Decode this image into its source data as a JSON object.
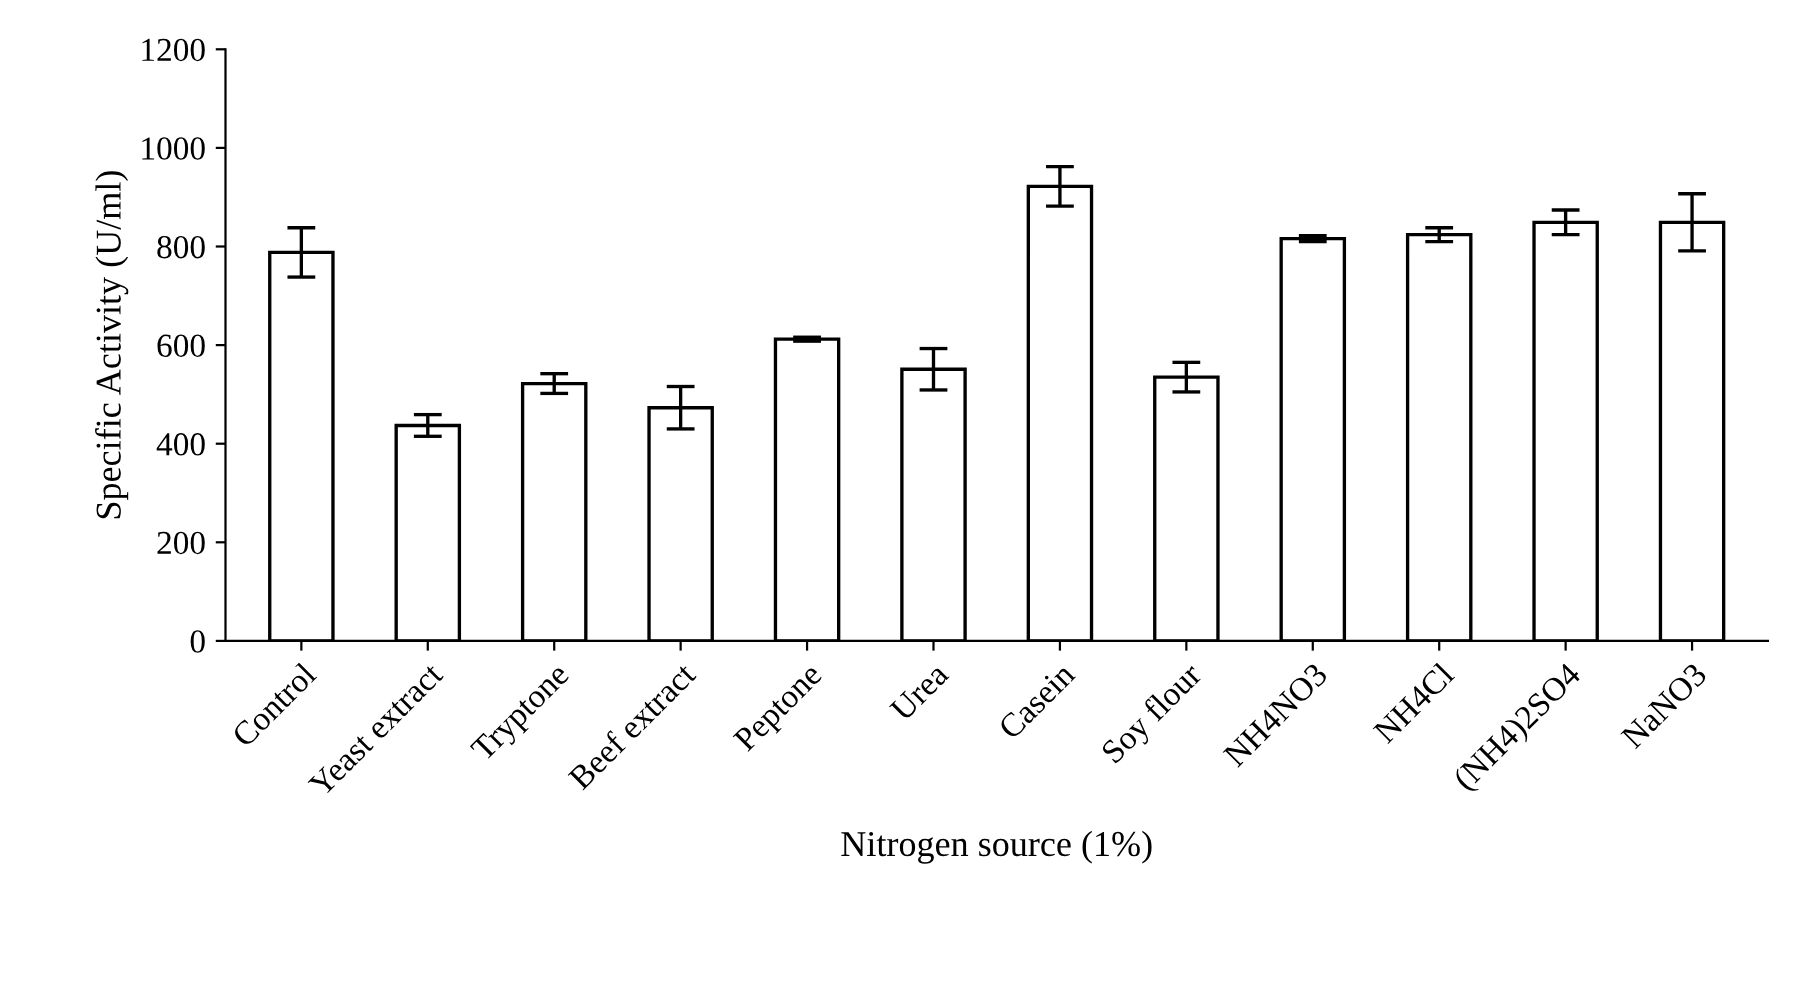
{
  "chart_data": {
    "type": "bar",
    "xlabel": "Nitrogen source (1%)",
    "ylabel": "Specific Activity (U/ml)",
    "categories": [
      "Control",
      "Yeast extract",
      "Tryptone",
      "Beef extract",
      "Peptone",
      "Urea",
      "Casein",
      "Soy flour",
      "NH4NO3",
      "NH4Cl",
      "(NH4)2SO4",
      "NaNO3"
    ],
    "values": [
      788,
      437,
      522,
      473,
      612,
      551,
      922,
      535,
      816,
      824,
      849,
      849
    ],
    "errors": [
      50,
      22,
      20,
      43,
      4,
      42,
      40,
      30,
      6,
      14,
      25,
      58
    ],
    "color": "#ffffff",
    "ylim": [
      0,
      1200
    ],
    "yticks": [
      0,
      200,
      400,
      600,
      800,
      1000,
      1200
    ],
    "grid": false,
    "legend": false
  }
}
